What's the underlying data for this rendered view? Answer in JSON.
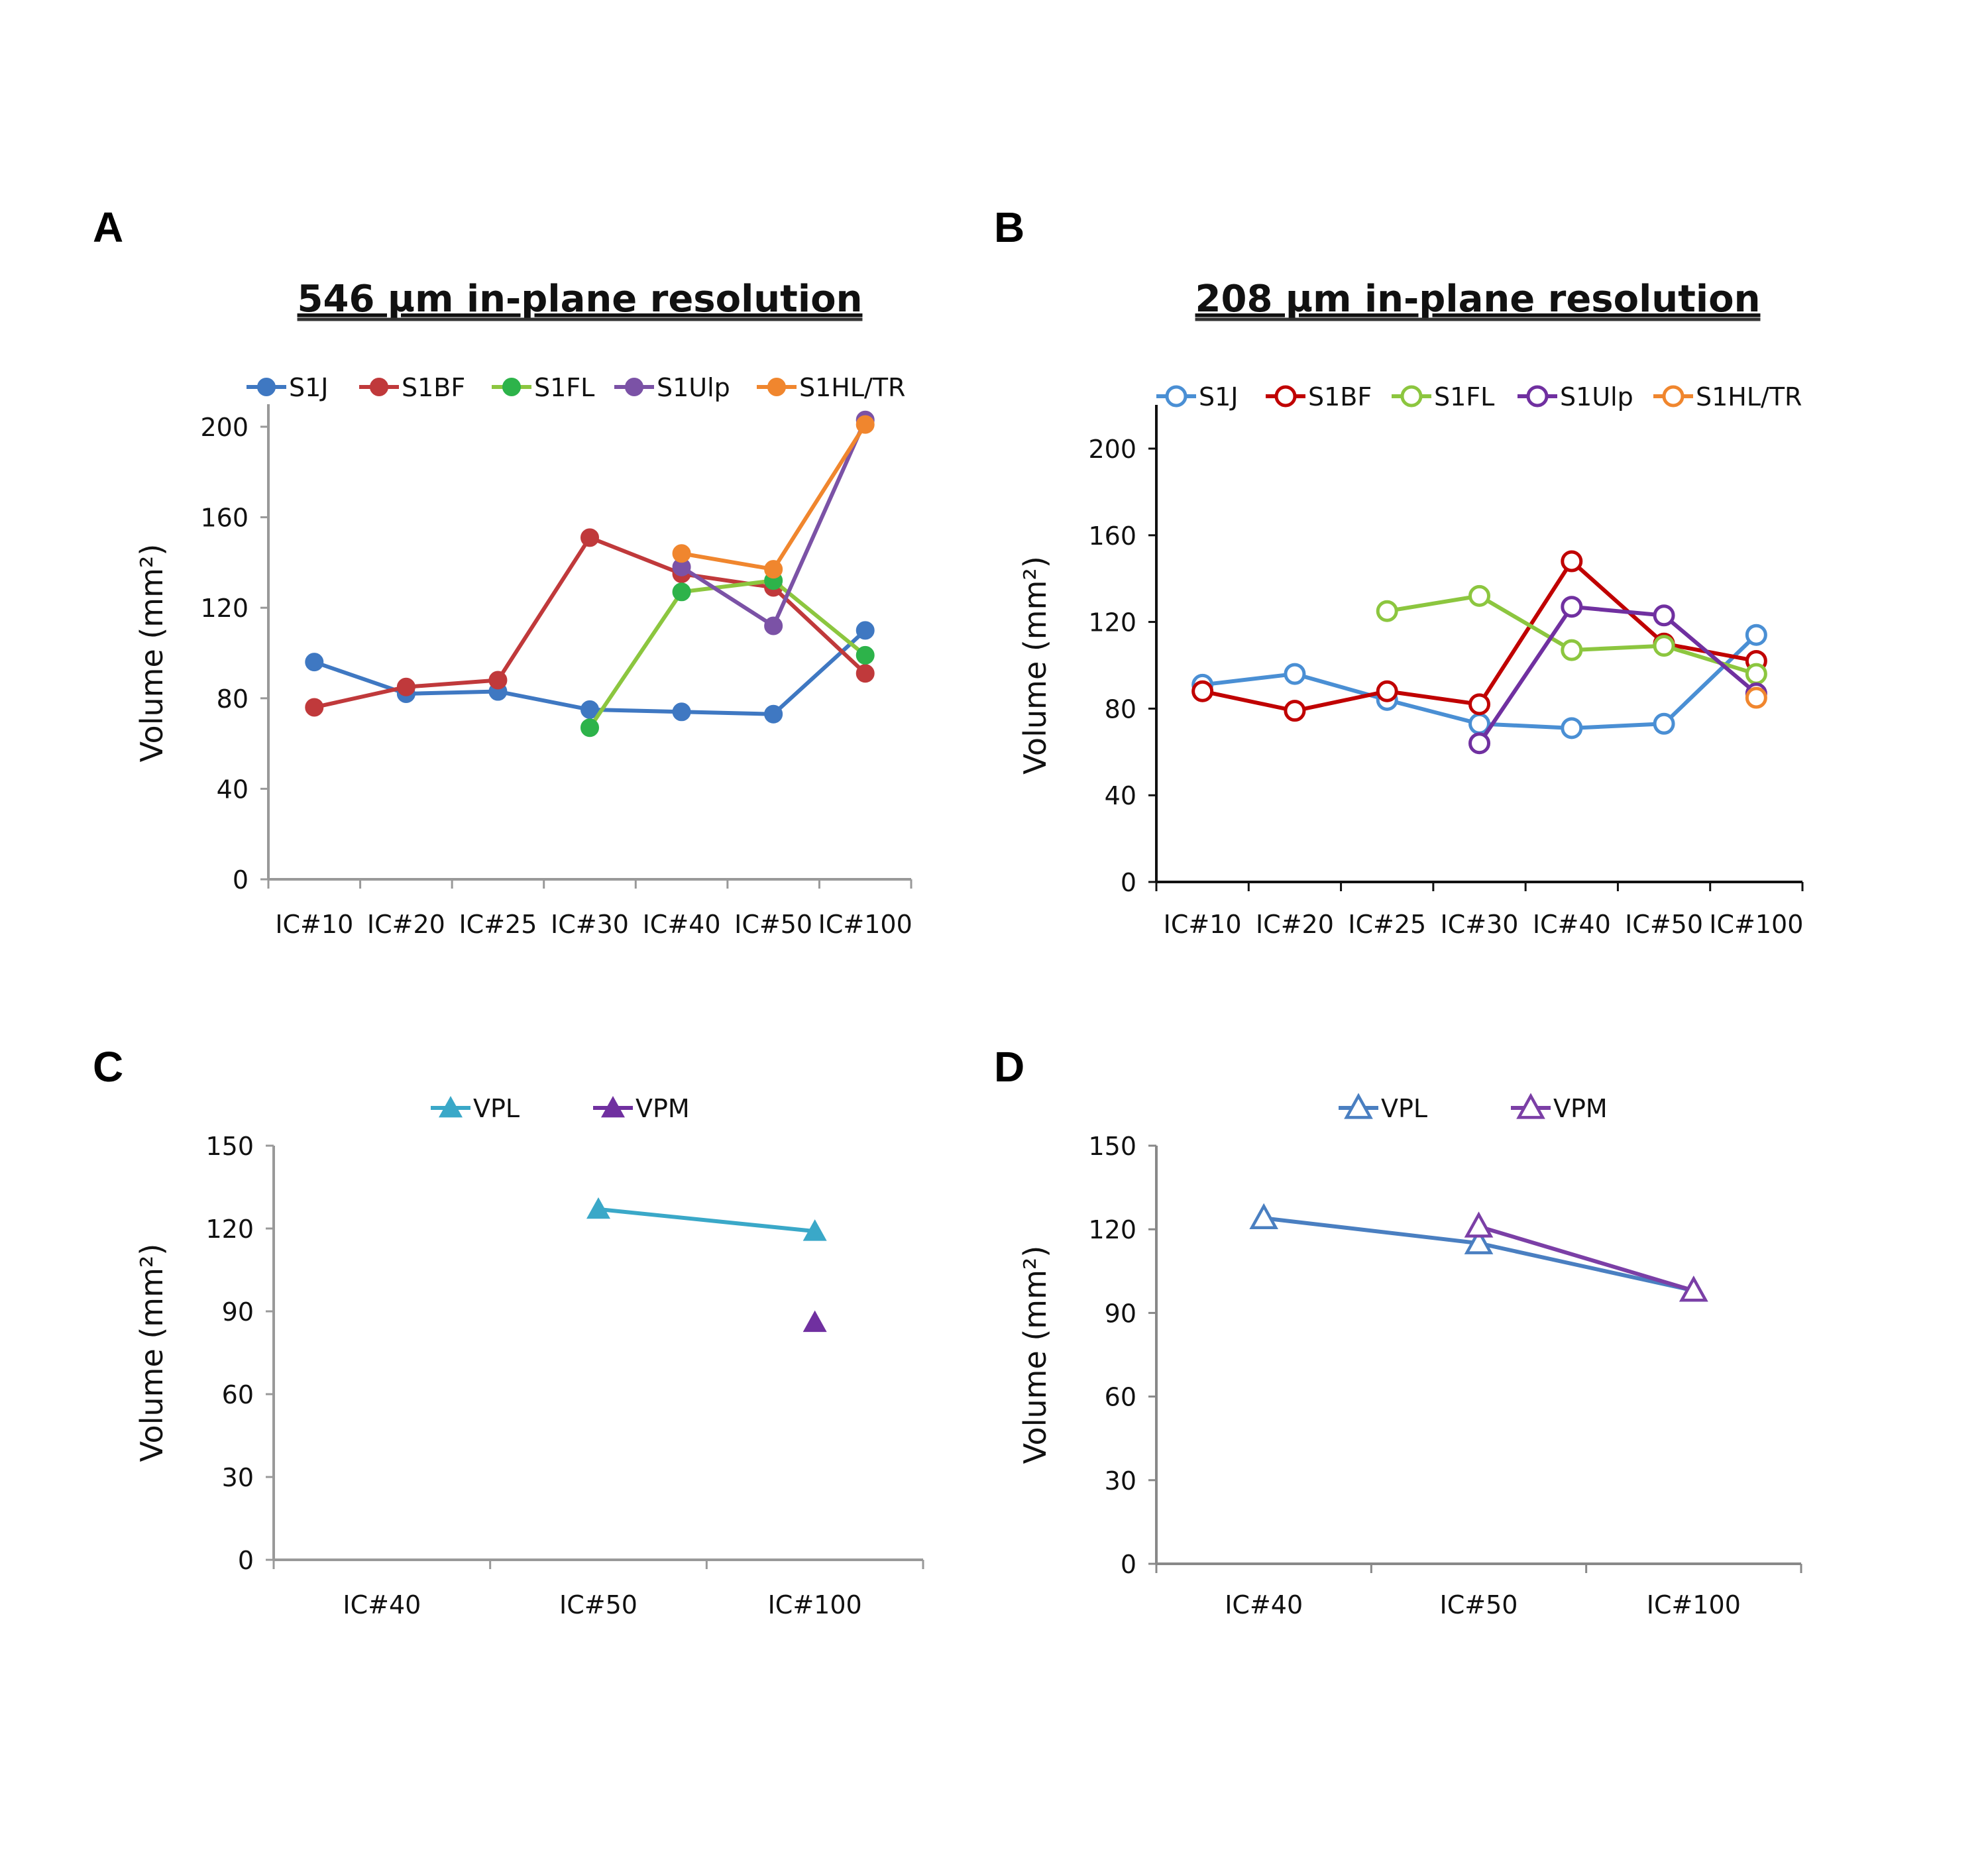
{
  "chart_data": [
    {
      "panel": "A",
      "type": "line",
      "title": "546 µm in-plane resolution",
      "xlabel": "",
      "ylabel": "Volume (mm²)",
      "ylim": [
        0,
        200
      ],
      "yticks": [
        "0",
        "40",
        "80",
        "120",
        "160",
        "200"
      ],
      "categories": [
        "IC#10",
        "IC#20",
        "IC#25",
        "IC#30",
        "IC#40",
        "IC#50",
        "IC#100"
      ],
      "legend_position": "top",
      "marker": "filled-circle",
      "series": [
        {
          "name": "S1J",
          "color": "#3f78c2",
          "values": [
            96,
            82,
            83,
            75,
            74,
            73,
            110
          ]
        },
        {
          "name": "S1BF",
          "color": "#c0393b",
          "values": [
            76,
            85,
            88,
            151,
            135,
            129,
            91
          ]
        },
        {
          "name": "S1FL",
          "color": "#8cc63f",
          "marker_color": "#2db34a",
          "values": [
            null,
            null,
            null,
            67,
            127,
            132,
            99
          ]
        },
        {
          "name": "S1Ulp",
          "color": "#7b52a6",
          "values": [
            null,
            null,
            null,
            null,
            138,
            112,
            203
          ]
        },
        {
          "name": "S1HL/TR",
          "color": "#f0862e",
          "values": [
            null,
            null,
            null,
            null,
            144,
            137,
            201
          ]
        }
      ]
    },
    {
      "panel": "B",
      "type": "line",
      "title": "208 µm in-plane resolution",
      "xlabel": "",
      "ylabel": "Volume (mm²)",
      "ylim": [
        0,
        220
      ],
      "yticks": [
        "0",
        "40",
        "80",
        "120",
        "160",
        "200"
      ],
      "categories": [
        "IC#10",
        "IC#20",
        "IC#25",
        "IC#30",
        "IC#40",
        "IC#50",
        "IC#100"
      ],
      "legend_position": "top",
      "marker": "open-circle",
      "series": [
        {
          "name": "S1J",
          "color": "#4a8fd4",
          "values": [
            91,
            96,
            84,
            73,
            71,
            73,
            114
          ]
        },
        {
          "name": "S1BF",
          "color": "#c00000",
          "values": [
            88,
            79,
            88,
            82,
            148,
            110,
            102
          ]
        },
        {
          "name": "S1FL",
          "color": "#8cc63f",
          "values": [
            null,
            null,
            125,
            132,
            107,
            109,
            96
          ]
        },
        {
          "name": "S1Ulp",
          "color": "#7030a0",
          "values": [
            null,
            null,
            null,
            64,
            127,
            123,
            87
          ]
        },
        {
          "name": "S1HL/TR",
          "color": "#f0862e",
          "values": [
            null,
            null,
            null,
            null,
            null,
            null,
            85
          ]
        }
      ]
    },
    {
      "panel": "C",
      "type": "line",
      "title": "",
      "xlabel": "",
      "ylabel": "Volume (mm²)",
      "ylim": [
        0,
        150
      ],
      "yticks": [
        "0",
        "30",
        "60",
        "90",
        "120",
        "150"
      ],
      "categories": [
        "IC#40",
        "IC#50",
        "IC#100"
      ],
      "legend_position": "top",
      "marker": "filled-triangle",
      "series": [
        {
          "name": "VPL",
          "color": "#3aa8c8",
          "values": [
            null,
            127,
            119
          ]
        },
        {
          "name": "VPM",
          "color": "#7030a0",
          "values": [
            null,
            null,
            86
          ]
        }
      ]
    },
    {
      "panel": "D",
      "type": "line",
      "title": "",
      "xlabel": "",
      "ylabel": "Volume (mm²)",
      "ylim": [
        0,
        150
      ],
      "yticks": [
        "0",
        "30",
        "60",
        "90",
        "120",
        "150"
      ],
      "categories": [
        "IC#40",
        "IC#50",
        "IC#100"
      ],
      "legend_position": "top",
      "marker": "open-triangle",
      "series": [
        {
          "name": "VPL",
          "color": "#4a7fc1",
          "values": [
            124,
            115,
            98
          ]
        },
        {
          "name": "VPM",
          "color": "#7b3fa6",
          "values": [
            null,
            121,
            98
          ]
        }
      ]
    }
  ]
}
